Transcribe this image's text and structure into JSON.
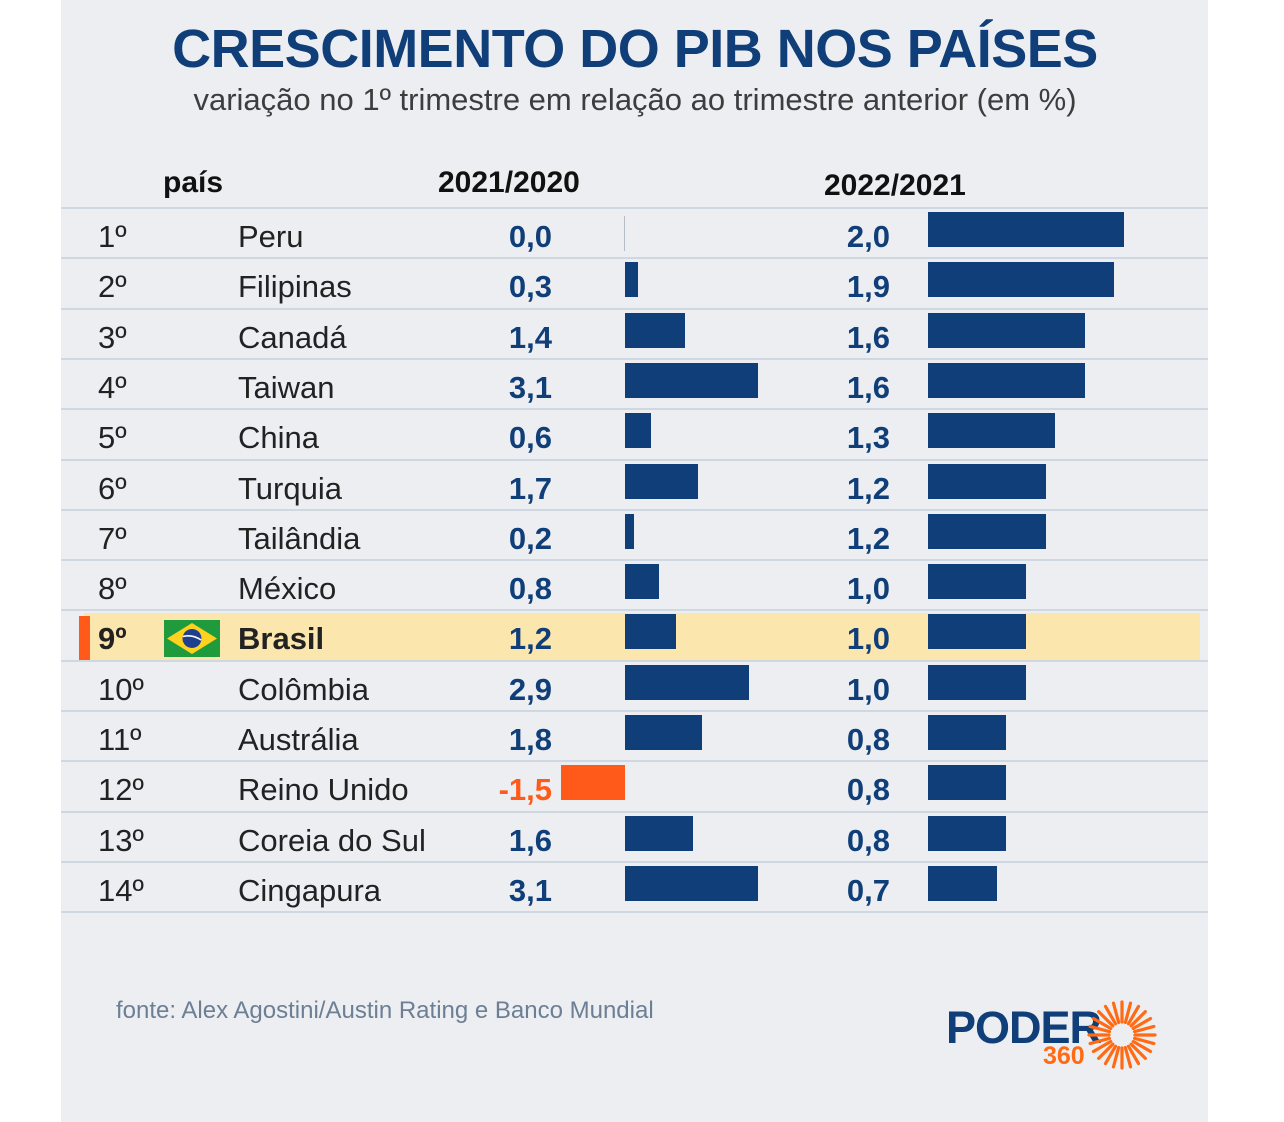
{
  "title": "CRESCIMENTO DO PIB NOS PAÍSES",
  "subtitle": "variação no 1º trimestre em relação ao trimestre anterior (em %)",
  "headers": {
    "country": "país",
    "col1": "2021/2020",
    "col2": "2022/2021"
  },
  "source": "fonte: Alex Agostini/Austin Rating e Banco Mundial",
  "logo": {
    "text": "PODER",
    "number": "360",
    "icon": "sun-rays-icon"
  },
  "highlight": {
    "row": "Brasil",
    "flag_icon": "brazil-flag-icon"
  },
  "colors": {
    "bar": "#0f3e78",
    "negative": "#ff5a1a",
    "highlight": "#fbe6ad",
    "background": "#eceef1"
  },
  "chart_data": {
    "type": "table",
    "series": [
      {
        "name": "2021/2020",
        "values": [
          0.0,
          0.3,
          1.4,
          3.1,
          0.6,
          1.7,
          0.2,
          0.8,
          1.2,
          2.9,
          1.8,
          -1.5,
          1.6,
          3.1
        ]
      },
      {
        "name": "2022/2021",
        "values": [
          2.0,
          1.9,
          1.6,
          1.6,
          1.3,
          1.2,
          1.2,
          1.0,
          1.0,
          1.0,
          0.8,
          0.8,
          0.8,
          0.7
        ]
      }
    ],
    "rows": [
      {
        "rank": "1º",
        "country": "Peru",
        "v1_label": "0,0",
        "v2_label": "2,0"
      },
      {
        "rank": "2º",
        "country": "Filipinas",
        "v1_label": "0,3",
        "v2_label": "1,9"
      },
      {
        "rank": "3º",
        "country": "Canadá",
        "v1_label": "1,4",
        "v2_label": "1,6"
      },
      {
        "rank": "4º",
        "country": "Taiwan",
        "v1_label": "3,1",
        "v2_label": "1,6"
      },
      {
        "rank": "5º",
        "country": "China",
        "v1_label": "0,6",
        "v2_label": "1,3"
      },
      {
        "rank": "6º",
        "country": "Turquia",
        "v1_label": "1,7",
        "v2_label": "1,2"
      },
      {
        "rank": "7º",
        "country": "Tailândia",
        "v1_label": "0,2",
        "v2_label": "1,2"
      },
      {
        "rank": "8º",
        "country": "México",
        "v1_label": "0,8",
        "v2_label": "1,0"
      },
      {
        "rank": "9º",
        "country": "Brasil",
        "v1_label": "1,2",
        "v2_label": "1,0"
      },
      {
        "rank": "10º",
        "country": "Colômbia",
        "v1_label": "2,9",
        "v2_label": "1,0"
      },
      {
        "rank": "11º",
        "country": "Austrália",
        "v1_label": "1,8",
        "v2_label": "0,8"
      },
      {
        "rank": "12º",
        "country": "Reino Unido",
        "v1_label": "-1,5",
        "v2_label": "0,8"
      },
      {
        "rank": "13º",
        "country": "Coreia do Sul",
        "v1_label": "1,6",
        "v2_label": "0,8"
      },
      {
        "rank": "14º",
        "country": "Cingapura",
        "v1_label": "3,1",
        "v2_label": "0,7"
      }
    ]
  }
}
